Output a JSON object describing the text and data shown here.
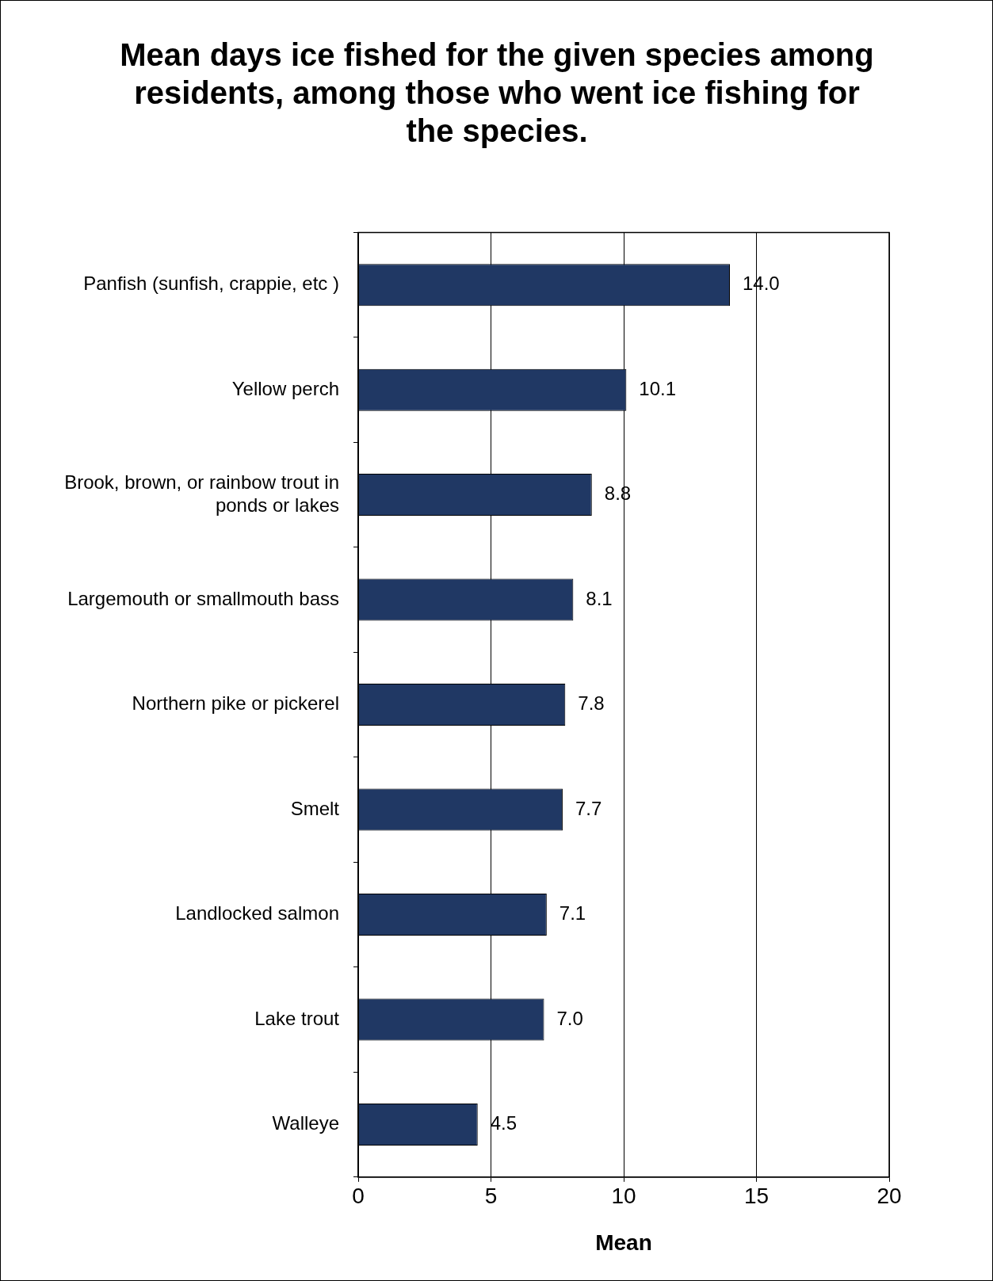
{
  "chart_data": {
    "type": "bar",
    "orientation": "horizontal",
    "title": "Mean days ice fished for the given species among residents, among those who went ice fishing for the species.",
    "xlabel": "Mean",
    "categories": [
      "Panfish (sunfish, crappie, etc )",
      "Yellow perch",
      "Brook, brown, or rainbow trout in ponds or lakes",
      "Largemouth or smallmouth bass",
      "Northern pike or pickerel",
      "Smelt",
      "Landlocked salmon",
      "Lake trout",
      "Walleye"
    ],
    "values": [
      14.0,
      10.1,
      8.8,
      8.1,
      7.8,
      7.7,
      7.1,
      7.0,
      4.5
    ],
    "value_labels": [
      "14.0",
      "10.1",
      "8.8",
      "8.1",
      "7.8",
      "7.7",
      "7.1",
      "7.0",
      "4.5"
    ],
    "color": "#203864",
    "xlim": [
      0,
      20
    ],
    "xticks": [
      0,
      5,
      10,
      15,
      20
    ],
    "grid": "x",
    "legend": false
  }
}
